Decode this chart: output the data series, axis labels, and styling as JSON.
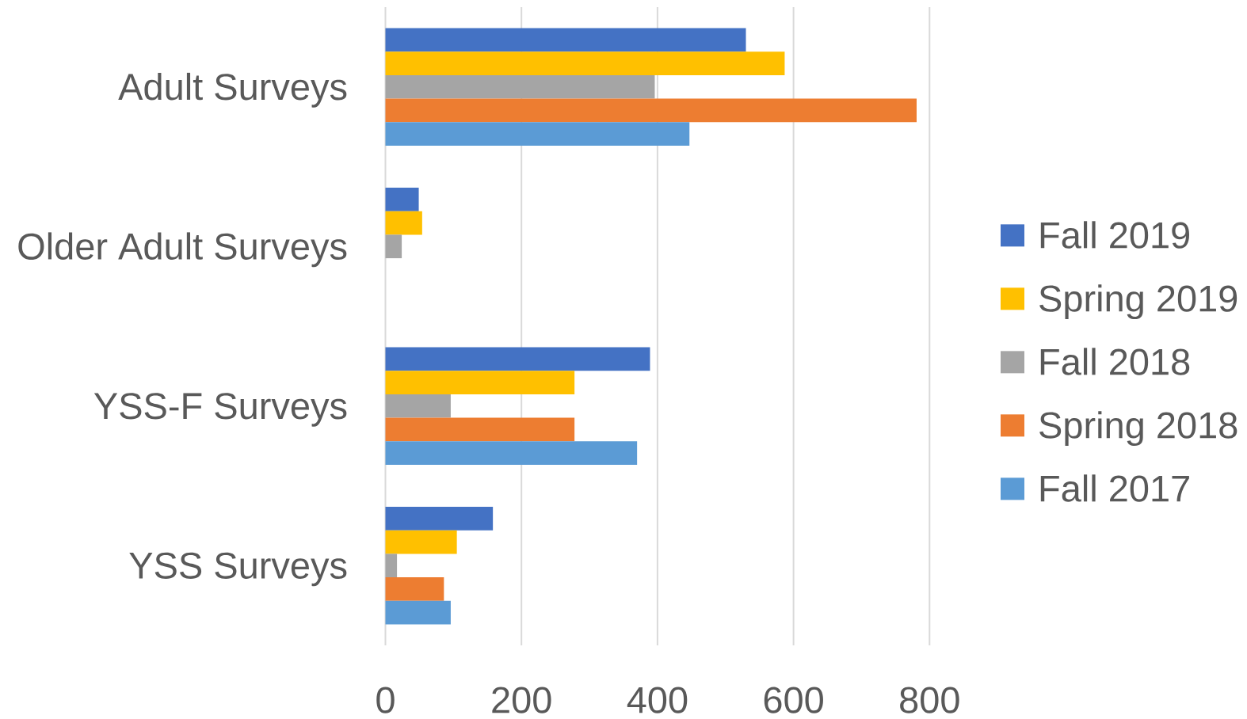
{
  "chart_data": {
    "type": "bar",
    "orientation": "horizontal",
    "categories": [
      "Adult Surveys",
      "Older Adult Surveys",
      "YSS-F Surveys",
      "YSS Surveys"
    ],
    "series": [
      {
        "name": "Fall 2019",
        "color": "#4472c4",
        "values": [
          530,
          49,
          389,
          158
        ]
      },
      {
        "name": "Spring 2019",
        "color": "#ffc000",
        "values": [
          587,
          54,
          278,
          105
        ]
      },
      {
        "name": "Fall 2018",
        "color": "#a5a5a5",
        "values": [
          396,
          24,
          96,
          17
        ]
      },
      {
        "name": "Spring 2018",
        "color": "#ed7d31",
        "values": [
          781,
          null,
          278,
          86
        ]
      },
      {
        "name": "Fall 2017",
        "color": "#5b9bd5",
        "values": [
          447,
          null,
          370,
          96
        ]
      }
    ],
    "xlim": [
      0,
      800
    ],
    "xticks": [
      0,
      200,
      400,
      600,
      800
    ],
    "grid": "x",
    "legend": "right"
  }
}
